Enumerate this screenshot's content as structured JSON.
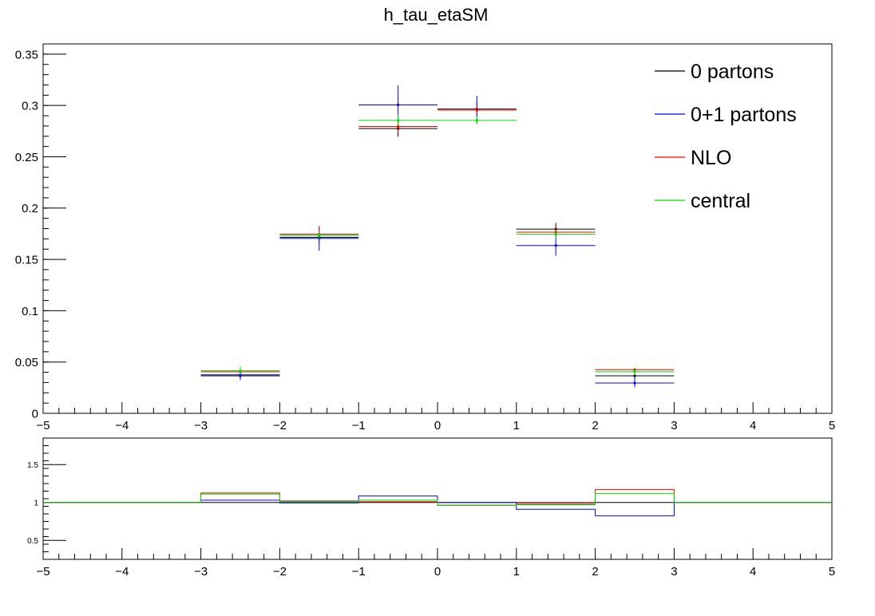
{
  "chart_data": [
    {
      "type": "line",
      "title": "h_tau_etaSM",
      "xlabel": "",
      "ylabel": "",
      "xlim": [
        -5,
        5
      ],
      "ylim": [
        0,
        0.36
      ],
      "x_ticks": [
        -5,
        -4,
        -3,
        -2,
        -1,
        0,
        1,
        2,
        3,
        4,
        5
      ],
      "y_ticks": [
        0,
        0.05,
        0.1,
        0.15,
        0.2,
        0.25,
        0.3,
        0.35
      ],
      "x_tick_labels": [
        "−5",
        "−4",
        "−3",
        "−2",
        "−1",
        "0",
        "1",
        "2",
        "3",
        "4",
        "5"
      ],
      "y_tick_labels": [
        "0",
        "0.05",
        "0.1",
        "0.15",
        "0.2",
        "0.25",
        "0.3",
        "0.35"
      ],
      "legend_position": "top-right",
      "bin_edges": [
        -3,
        -2,
        -1,
        0,
        1,
        2,
        3
      ],
      "series": [
        {
          "name": "0 partons",
          "color": "#000000",
          "values": [
            0.0365,
            0.1715,
            0.2775,
            0.2965,
            0.1795,
            0.0365
          ],
          "errors": [
            0.003,
            0.005,
            0.008,
            0.007,
            0.006,
            0.003
          ]
        },
        {
          "name": "0+1 partons",
          "color": "#0000ff",
          "values": [
            0.0375,
            0.1705,
            0.3005,
            0.2955,
            0.1635,
            0.0295
          ],
          "errors": [
            0.005,
            0.012,
            0.019,
            0.014,
            0.01,
            0.004
          ]
        },
        {
          "name": "NLO",
          "color": "#ff0000",
          "values": [
            0.0405,
            0.1745,
            0.2795,
            0.2955,
            0.1765,
            0.0425
          ],
          "errors": [
            0.002,
            0.007,
            0.006,
            0.004,
            0.005,
            0.002
          ]
        },
        {
          "name": "central",
          "color": "#00dd00",
          "values": [
            0.0415,
            0.1735,
            0.2855,
            0.2855,
            0.1745,
            0.0405
          ],
          "errors": [
            0.004,
            0.004,
            0.005,
            0.004,
            0.004,
            0.003
          ]
        }
      ]
    },
    {
      "type": "line",
      "title": "",
      "xlim": [
        -5,
        5
      ],
      "ylim": [
        0.25,
        1.85
      ],
      "x_ticks": [
        -5,
        -4,
        -3,
        -2,
        -1,
        0,
        1,
        2,
        3,
        4,
        5
      ],
      "y_ticks": [
        0.5,
        1,
        1.5
      ],
      "x_tick_labels": [
        "−5",
        "−4",
        "−3",
        "−2",
        "−1",
        "0",
        "1",
        "2",
        "3",
        "4",
        "5"
      ],
      "y_tick_labels": [
        "0.5",
        "1",
        "1.5"
      ],
      "bin_edges": [
        -5,
        -4,
        -3,
        -2,
        -1,
        0,
        1,
        2,
        3,
        4,
        5
      ],
      "series": [
        {
          "name": "0 partons",
          "color": "#000000",
          "values": [
            1,
            1,
            1,
            1,
            1,
            1,
            1,
            1,
            1,
            1
          ]
        },
        {
          "name": "0+1 partons",
          "color": "#0000ff",
          "values": [
            1,
            1,
            1.03,
            0.995,
            1.085,
            1.0,
            0.91,
            0.825,
            1,
            1
          ]
        },
        {
          "name": "NLO",
          "color": "#ff0000",
          "values": [
            1,
            1,
            1.125,
            1.02,
            1.01,
            0.965,
            0.98,
            1.17,
            1,
            1
          ]
        },
        {
          "name": "central",
          "color": "#00dd00",
          "values": [
            1,
            1,
            1.11,
            1.01,
            1.03,
            0.96,
            0.97,
            1.12,
            1,
            1
          ]
        }
      ]
    }
  ]
}
